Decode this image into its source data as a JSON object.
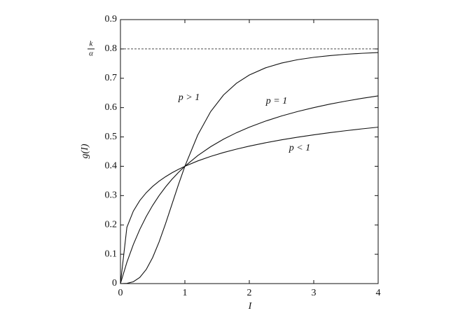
{
  "chart_data": {
    "type": "line",
    "xlabel": "I",
    "ylabel": "g(I)",
    "x": [
      0,
      0.1,
      0.2,
      0.3,
      0.4,
      0.5,
      0.6,
      0.7,
      0.8,
      0.9,
      1,
      1.2,
      1.4,
      1.6,
      1.8,
      2,
      2.25,
      2.5,
      2.75,
      3,
      3.25,
      3.5,
      3.75,
      4
    ],
    "series": [
      {
        "name": "p > 1",
        "color": "#111111",
        "values": [
          0,
          0.0008,
          0.0063,
          0.021,
          0.0481,
          0.0889,
          0.1421,
          0.2043,
          0.2709,
          0.3373,
          0.4,
          0.5067,
          0.5863,
          0.643,
          0.6829,
          0.7111,
          0.7354,
          0.7519,
          0.7633,
          0.7714,
          0.7773,
          0.7818,
          0.7851,
          0.7877
        ]
      },
      {
        "name": "p = 1",
        "color": "#111111",
        "values": [
          0,
          0.0727,
          0.1333,
          0.1846,
          0.2286,
          0.2667,
          0.3,
          0.3294,
          0.3556,
          0.3789,
          0.4,
          0.4364,
          0.4667,
          0.4923,
          0.5143,
          0.5333,
          0.5538,
          0.5714,
          0.5867,
          0.6,
          0.6118,
          0.6222,
          0.6316,
          0.64
        ]
      },
      {
        "name": "p < 1",
        "color": "#111111",
        "values": [
          0,
          0.1922,
          0.2472,
          0.2831,
          0.3099,
          0.3314,
          0.3492,
          0.3644,
          0.3777,
          0.3894,
          0.4,
          0.4182,
          0.4336,
          0.4468,
          0.4584,
          0.4686,
          0.48,
          0.4901,
          0.4991,
          0.5072,
          0.5146,
          0.5213,
          0.5276,
          0.5333
        ]
      }
    ],
    "asymptote": {
      "value": 0.8,
      "numerator": "k",
      "denominator": "α"
    },
    "xlim": [
      0,
      4
    ],
    "xticks": [
      0,
      1,
      2,
      3,
      4
    ],
    "ylim": [
      0,
      0.9
    ],
    "yticks": [
      0,
      0.1,
      0.2,
      0.3,
      0.4,
      0.5,
      0.6,
      0.7,
      0.8,
      0.9
    ],
    "grid": false
  }
}
